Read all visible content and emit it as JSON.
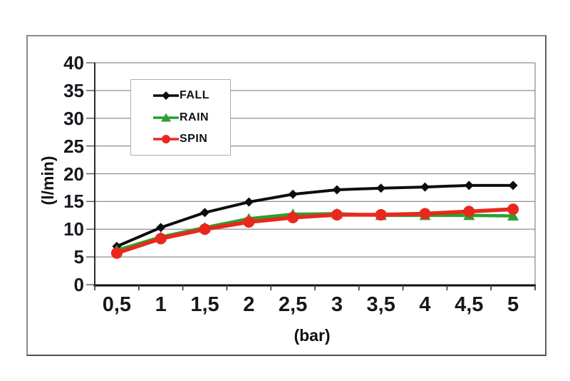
{
  "window": {
    "background": "#ffffff",
    "frame_border_color": "#8a8a8a"
  },
  "chart_data": {
    "type": "line",
    "title": "",
    "xlabel": "(bar)",
    "ylabel": "(l/min)",
    "x": [
      0.5,
      1,
      1.5,
      2,
      2.5,
      3,
      3.5,
      4,
      4.5,
      5
    ],
    "x_tick_labels": [
      "0,5",
      "1",
      "1,5",
      "2",
      "2,5",
      "3",
      "3,5",
      "4",
      "4,5",
      "5"
    ],
    "y_ticks": [
      40,
      35,
      30,
      25,
      20,
      15,
      10,
      5,
      0
    ],
    "y_tick_labels": [
      "40",
      "35",
      "30",
      "25",
      "20",
      "15",
      "10",
      "5",
      "0"
    ],
    "ylim": [
      0,
      40
    ],
    "grid": true,
    "gridline_color": "#8f8f8f",
    "axis_color": "#1a1a1a",
    "tick_label_color": "#17171f",
    "legend_position": "upper-left-inside",
    "series": [
      {
        "name": "FALL",
        "color": "#0d0d0d",
        "marker": "diamond",
        "line_width": 4,
        "values": [
          6.9,
          10.3,
          13.0,
          14.9,
          16.3,
          17.1,
          17.4,
          17.6,
          17.9,
          17.9
        ]
      },
      {
        "name": "RAIN",
        "color": "#2aa12e",
        "marker": "triangle",
        "line_width": 4.5,
        "values": [
          6.2,
          8.6,
          10.3,
          11.9,
          12.7,
          12.8,
          12.5,
          12.5,
          12.5,
          12.4
        ]
      },
      {
        "name": "SPIN",
        "color": "#e8281e",
        "marker": "circle",
        "line_width": 5.5,
        "values": [
          5.7,
          8.3,
          10.0,
          11.3,
          12.1,
          12.6,
          12.6,
          12.8,
          13.2,
          13.6
        ]
      }
    ]
  }
}
